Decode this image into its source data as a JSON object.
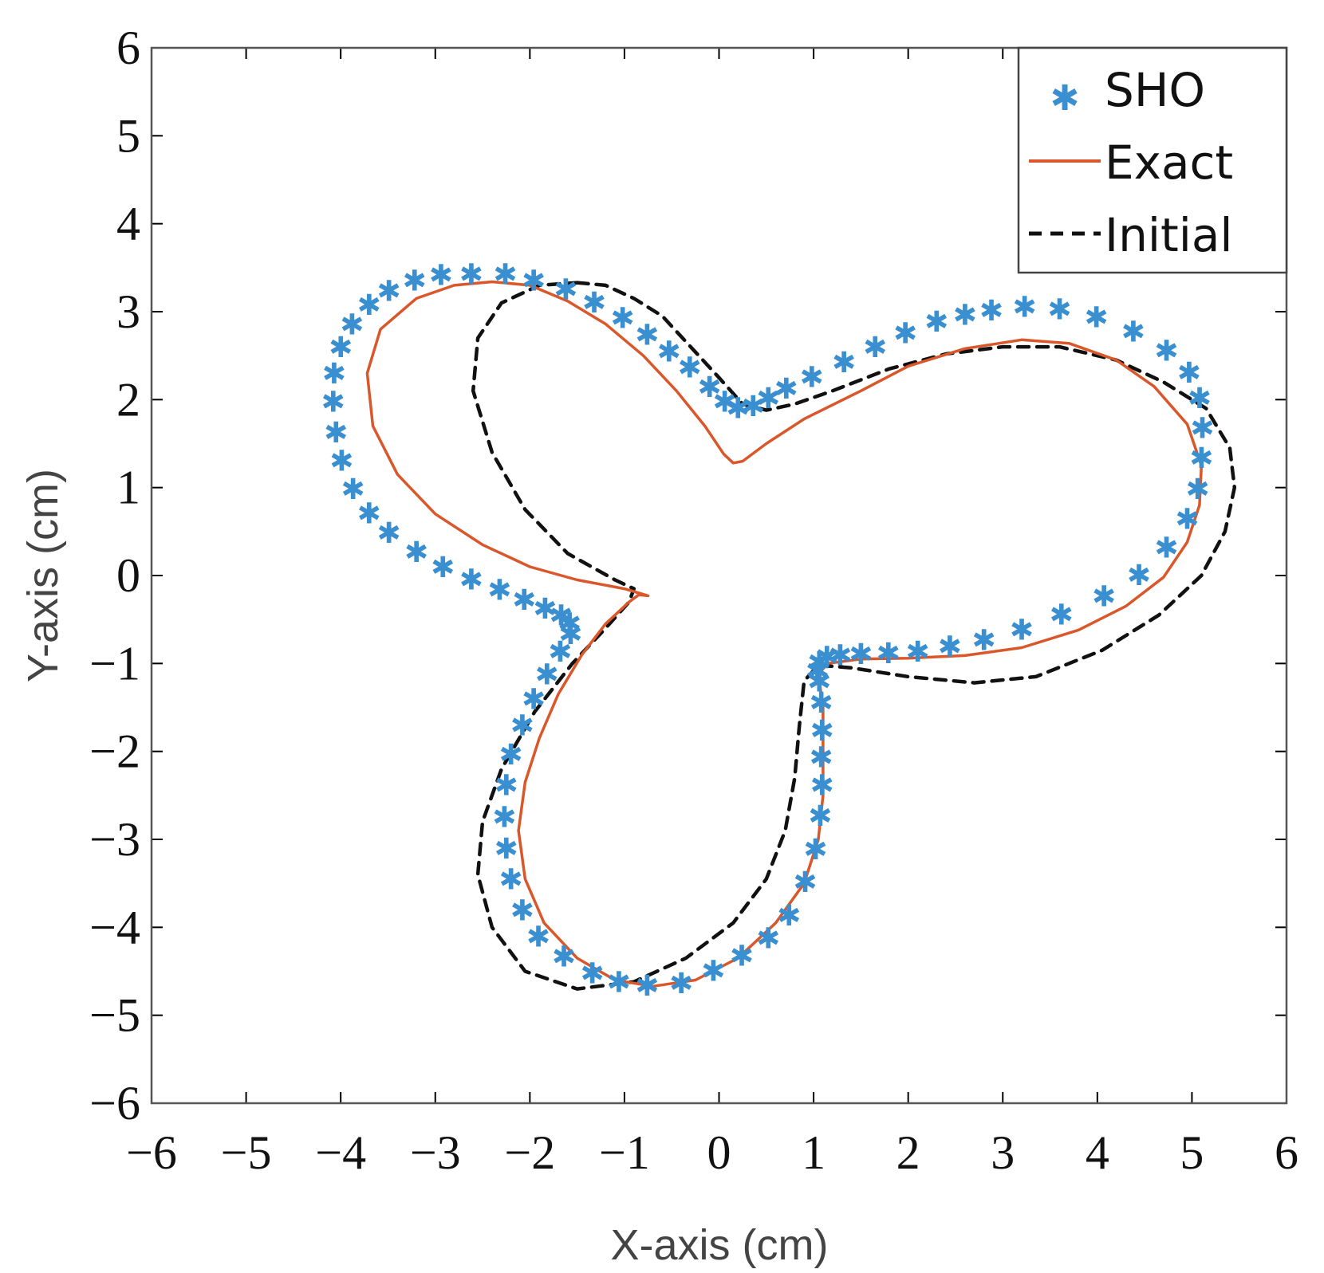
{
  "chart_data": {
    "type": "line",
    "title": "",
    "xlabel": "X-axis (cm)",
    "ylabel": "Y-axis (cm)",
    "xlim": [
      -6,
      6
    ],
    "ylim": [
      -6,
      6
    ],
    "xticks": [
      -6,
      -5,
      -4,
      -3,
      -2,
      -1,
      0,
      1,
      2,
      3,
      4,
      5,
      6
    ],
    "yticks": [
      -6,
      -5,
      -4,
      -3,
      -2,
      -1,
      0,
      1,
      2,
      3,
      4,
      5,
      6
    ],
    "xtick_labels": [
      "−6",
      "−5",
      "−4",
      "−3",
      "−2",
      "−1",
      "0",
      "1",
      "2",
      "3",
      "4",
      "5",
      "6"
    ],
    "ytick_labels": [
      "−6",
      "−5",
      "−4",
      "−3",
      "−2",
      "−1",
      "0",
      "1",
      "2",
      "3",
      "4",
      "5",
      "6"
    ],
    "grid": false,
    "legend_position": "top-right",
    "series": [
      {
        "name": "SHO",
        "style": "markers",
        "marker": "*",
        "color": "#3a8fd0",
        "points": [
          [
            -2.62,
            3.43
          ],
          [
            -2.26,
            3.43
          ],
          [
            -1.96,
            3.36
          ],
          [
            -1.62,
            3.26
          ],
          [
            -1.32,
            3.11
          ],
          [
            -1.02,
            2.93
          ],
          [
            -0.76,
            2.74
          ],
          [
            -0.53,
            2.55
          ],
          [
            -0.31,
            2.37
          ],
          [
            -0.1,
            2.15
          ],
          [
            0.06,
            1.98
          ],
          [
            0.2,
            1.91
          ],
          [
            0.36,
            1.93
          ],
          [
            0.52,
            2.02
          ],
          [
            0.71,
            2.13
          ],
          [
            0.98,
            2.26
          ],
          [
            1.32,
            2.43
          ],
          [
            1.65,
            2.6
          ],
          [
            1.97,
            2.76
          ],
          [
            2.3,
            2.89
          ],
          [
            2.6,
            2.97
          ],
          [
            2.88,
            3.02
          ],
          [
            3.23,
            3.06
          ],
          [
            3.6,
            3.03
          ],
          [
            3.99,
            2.94
          ],
          [
            4.38,
            2.78
          ],
          [
            4.73,
            2.56
          ],
          [
            4.97,
            2.31
          ],
          [
            5.08,
            2.02
          ],
          [
            5.11,
            1.68
          ],
          [
            5.1,
            1.34
          ],
          [
            5.06,
            0.99
          ],
          [
            4.95,
            0.65
          ],
          [
            4.73,
            0.32
          ],
          [
            4.44,
            0.01
          ],
          [
            4.07,
            -0.23
          ],
          [
            3.62,
            -0.44
          ],
          [
            3.2,
            -0.61
          ],
          [
            2.8,
            -0.73
          ],
          [
            2.44,
            -0.8
          ],
          [
            2.1,
            -0.86
          ],
          [
            1.79,
            -0.88
          ],
          [
            1.5,
            -0.89
          ],
          [
            1.28,
            -0.9
          ],
          [
            1.14,
            -0.92
          ],
          [
            1.06,
            -0.98
          ],
          [
            1.04,
            -1.08
          ],
          [
            1.06,
            -1.2
          ],
          [
            1.08,
            -1.44
          ],
          [
            1.09,
            -1.76
          ],
          [
            1.08,
            -2.06
          ],
          [
            1.09,
            -2.38
          ],
          [
            1.07,
            -2.73
          ],
          [
            1.02,
            -3.11
          ],
          [
            0.91,
            -3.48
          ],
          [
            0.74,
            -3.86
          ],
          [
            0.52,
            -4.12
          ],
          [
            0.24,
            -4.32
          ],
          [
            -0.06,
            -4.49
          ],
          [
            -0.4,
            -4.63
          ],
          [
            -0.76,
            -4.66
          ],
          [
            -1.06,
            -4.62
          ],
          [
            -1.34,
            -4.52
          ],
          [
            -1.64,
            -4.33
          ],
          [
            -1.91,
            -4.1
          ],
          [
            -2.08,
            -3.8
          ],
          [
            -2.2,
            -3.45
          ],
          [
            -2.25,
            -3.1
          ],
          [
            -2.27,
            -2.74
          ],
          [
            -2.25,
            -2.38
          ],
          [
            -2.2,
            -2.03
          ],
          [
            -2.08,
            -1.7
          ],
          [
            -1.96,
            -1.4
          ],
          [
            -1.82,
            -1.12
          ],
          [
            -1.68,
            -0.86
          ],
          [
            -1.57,
            -0.66
          ],
          [
            -1.58,
            -0.54
          ],
          [
            -1.67,
            -0.45
          ],
          [
            -1.84,
            -0.37
          ],
          [
            -2.06,
            -0.27
          ],
          [
            -2.32,
            -0.16
          ],
          [
            -2.62,
            -0.04
          ],
          [
            -2.92,
            0.1
          ],
          [
            -3.2,
            0.27
          ],
          [
            -3.49,
            0.49
          ],
          [
            -3.7,
            0.71
          ],
          [
            -3.87,
            0.99
          ],
          [
            -3.99,
            1.31
          ],
          [
            -4.05,
            1.63
          ],
          [
            -4.08,
            1.98
          ],
          [
            -4.07,
            2.3
          ],
          [
            -4.0,
            2.6
          ],
          [
            -3.88,
            2.86
          ],
          [
            -3.7,
            3.08
          ],
          [
            -3.49,
            3.24
          ],
          [
            -3.22,
            3.36
          ],
          [
            -2.94,
            3.42
          ]
        ]
      },
      {
        "name": "Exact",
        "style": "solid",
        "color": "#d9572a",
        "points": [
          [
            -2.4,
            3.34
          ],
          [
            -2.0,
            3.3
          ],
          [
            -1.6,
            3.12
          ],
          [
            -1.2,
            2.86
          ],
          [
            -0.8,
            2.5
          ],
          [
            -0.45,
            2.1
          ],
          [
            -0.15,
            1.7
          ],
          [
            0.05,
            1.38
          ],
          [
            0.15,
            1.28
          ],
          [
            0.25,
            1.3
          ],
          [
            0.5,
            1.5
          ],
          [
            0.9,
            1.78
          ],
          [
            1.5,
            2.1
          ],
          [
            2.0,
            2.38
          ],
          [
            2.6,
            2.58
          ],
          [
            3.2,
            2.68
          ],
          [
            3.7,
            2.64
          ],
          [
            4.2,
            2.45
          ],
          [
            4.6,
            2.15
          ],
          [
            4.95,
            1.72
          ],
          [
            5.1,
            1.25
          ],
          [
            5.08,
            0.8
          ],
          [
            4.95,
            0.38
          ],
          [
            4.7,
            -0.02
          ],
          [
            4.3,
            -0.35
          ],
          [
            3.8,
            -0.62
          ],
          [
            3.2,
            -0.82
          ],
          [
            2.6,
            -0.91
          ],
          [
            2.0,
            -0.94
          ],
          [
            1.5,
            -0.95
          ],
          [
            1.15,
            -1.0
          ],
          [
            1.05,
            -1.12
          ],
          [
            1.1,
            -1.5
          ],
          [
            1.1,
            -2.0
          ],
          [
            1.1,
            -2.5
          ],
          [
            1.05,
            -3.0
          ],
          [
            0.9,
            -3.5
          ],
          [
            0.6,
            -3.95
          ],
          [
            0.2,
            -4.35
          ],
          [
            -0.25,
            -4.6
          ],
          [
            -0.7,
            -4.67
          ],
          [
            -1.1,
            -4.6
          ],
          [
            -1.5,
            -4.35
          ],
          [
            -1.85,
            -3.95
          ],
          [
            -2.05,
            -3.45
          ],
          [
            -2.12,
            -2.9
          ],
          [
            -2.05,
            -2.35
          ],
          [
            -1.9,
            -1.85
          ],
          [
            -1.7,
            -1.35
          ],
          [
            -1.45,
            -0.9
          ],
          [
            -1.2,
            -0.55
          ],
          [
            -0.95,
            -0.3
          ],
          [
            -0.85,
            -0.22
          ],
          [
            -0.75,
            -0.23
          ],
          [
            -1.0,
            -0.15
          ],
          [
            -1.5,
            -0.05
          ],
          [
            -2.0,
            0.1
          ],
          [
            -2.5,
            0.35
          ],
          [
            -3.0,
            0.7
          ],
          [
            -3.4,
            1.15
          ],
          [
            -3.66,
            1.7
          ],
          [
            -3.72,
            2.3
          ],
          [
            -3.58,
            2.8
          ],
          [
            -3.2,
            3.15
          ],
          [
            -2.8,
            3.3
          ],
          [
            -2.4,
            3.34
          ]
        ]
      },
      {
        "name": "Initial",
        "style": "dashed",
        "color": "#111111",
        "points": [
          [
            -1.5,
            3.33
          ],
          [
            -1.2,
            3.3
          ],
          [
            -0.9,
            3.15
          ],
          [
            -0.6,
            2.95
          ],
          [
            -0.3,
            2.6
          ],
          [
            0.0,
            2.25
          ],
          [
            0.25,
            1.95
          ],
          [
            0.5,
            1.88
          ],
          [
            0.8,
            1.95
          ],
          [
            1.2,
            2.1
          ],
          [
            1.8,
            2.35
          ],
          [
            2.4,
            2.52
          ],
          [
            3.0,
            2.6
          ],
          [
            3.6,
            2.6
          ],
          [
            4.2,
            2.45
          ],
          [
            4.7,
            2.2
          ],
          [
            5.15,
            1.9
          ],
          [
            5.4,
            1.45
          ],
          [
            5.45,
            1.0
          ],
          [
            5.35,
            0.5
          ],
          [
            5.1,
            0.0
          ],
          [
            4.65,
            -0.45
          ],
          [
            4.05,
            -0.85
          ],
          [
            3.35,
            -1.15
          ],
          [
            2.7,
            -1.22
          ],
          [
            2.0,
            -1.15
          ],
          [
            1.4,
            -1.05
          ],
          [
            1.05,
            -1.02
          ],
          [
            0.9,
            -1.2
          ],
          [
            0.85,
            -1.7
          ],
          [
            0.8,
            -2.3
          ],
          [
            0.7,
            -2.9
          ],
          [
            0.5,
            -3.45
          ],
          [
            0.15,
            -3.95
          ],
          [
            -0.35,
            -4.35
          ],
          [
            -0.9,
            -4.62
          ],
          [
            -1.5,
            -4.7
          ],
          [
            -2.05,
            -4.5
          ],
          [
            -2.4,
            -4.0
          ],
          [
            -2.55,
            -3.4
          ],
          [
            -2.5,
            -2.8
          ],
          [
            -2.3,
            -2.2
          ],
          [
            -1.95,
            -1.55
          ],
          [
            -1.55,
            -1.0
          ],
          [
            -1.2,
            -0.6
          ],
          [
            -0.95,
            -0.3
          ],
          [
            -0.9,
            -0.15
          ],
          [
            -1.1,
            -0.05
          ],
          [
            -1.6,
            0.25
          ],
          [
            -2.05,
            0.75
          ],
          [
            -2.4,
            1.4
          ],
          [
            -2.6,
            2.1
          ],
          [
            -2.55,
            2.7
          ],
          [
            -2.3,
            3.1
          ],
          [
            -1.9,
            3.3
          ],
          [
            -1.5,
            3.33
          ]
        ]
      }
    ]
  }
}
